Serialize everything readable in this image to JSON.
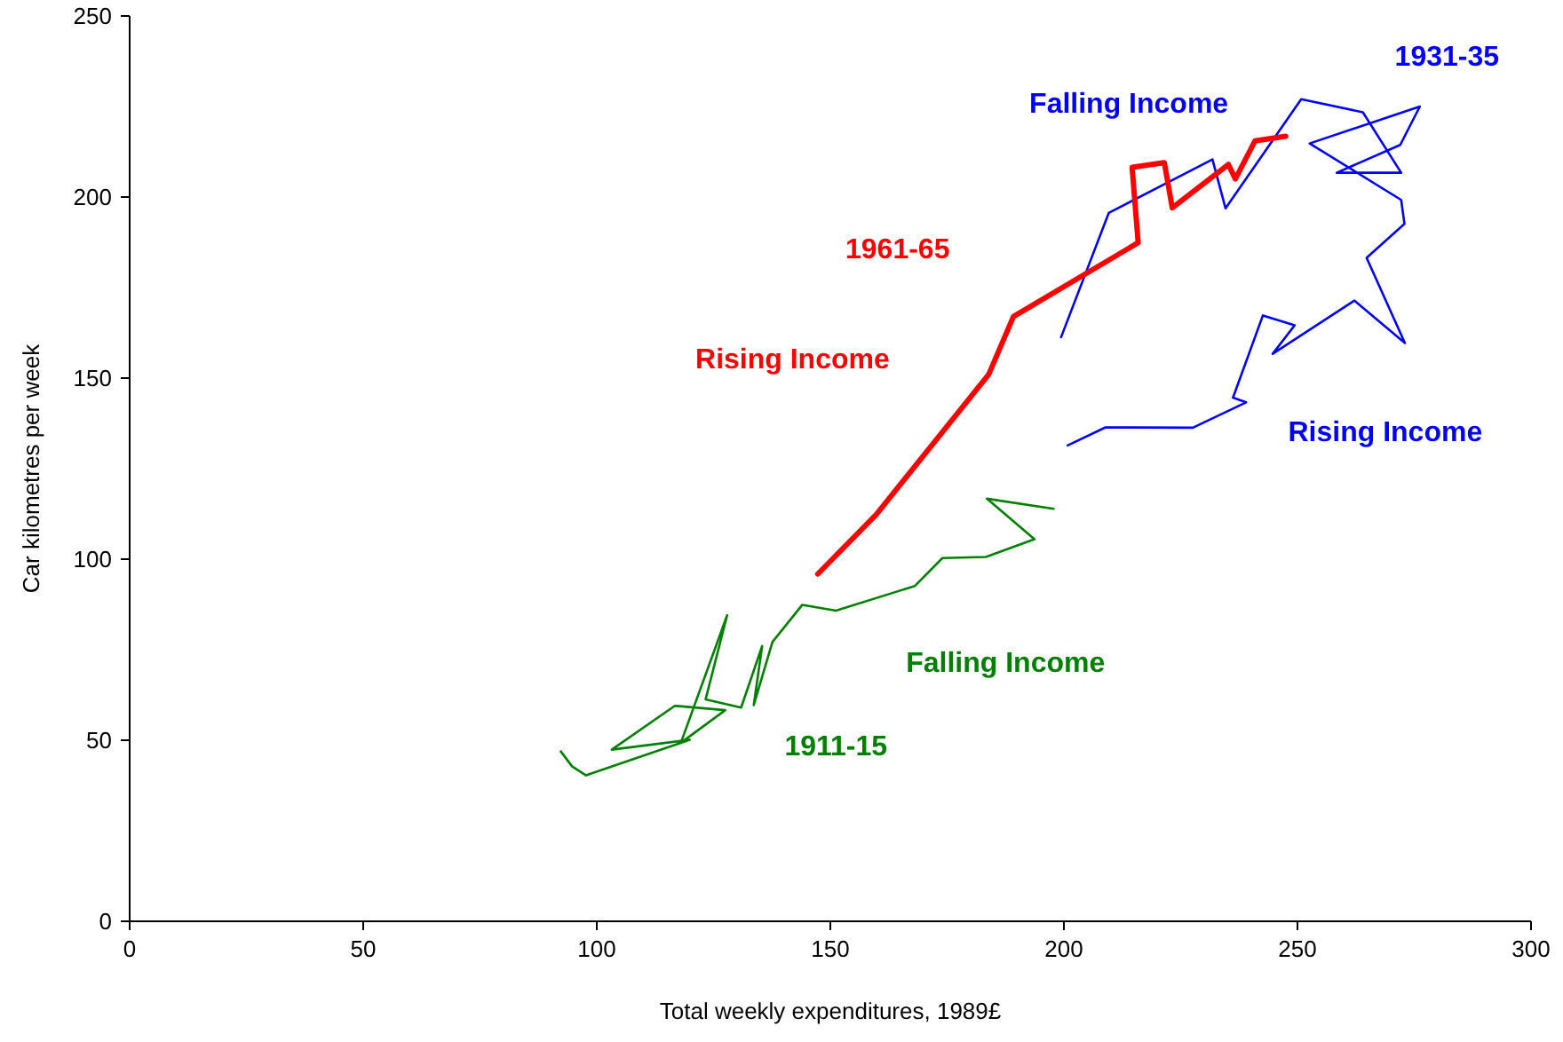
{
  "chart_data": {
    "type": "line",
    "xlabel": "Total weekly expenditures, 1989£",
    "ylabel": "Car kilometres per week",
    "xlim": [
      0,
      300
    ],
    "xticks": [
      0,
      50,
      100,
      150,
      200,
      250,
      300
    ],
    "ylim": [
      0,
      250
    ],
    "yticks": [
      0,
      50,
      100,
      150,
      200,
      250
    ],
    "grid": false,
    "marker": "none",
    "series": [
      {
        "name": "1911-15",
        "color": "#008000",
        "x": [
          92.3,
          94.7,
          97.7,
          119.9,
          103.2,
          116.7,
          127.5,
          118,
          127.9,
          123.3,
          130.9,
          135.4,
          133.6,
          137.6,
          144,
          151.2,
          168.1,
          174,
          183.3,
          193.7,
          183.5,
          197.8
        ],
        "values": [
          46.9,
          42.8,
          40.3,
          50.1,
          47.4,
          59.5,
          58.3,
          49.3,
          84.5,
          61.3,
          59,
          76,
          59.7,
          77.1,
          87.4,
          85.8,
          92.6,
          100.3,
          100.6,
          105.5,
          116.7,
          113.9
        ]
      },
      {
        "name": "1931-35",
        "color": "#0000ff",
        "x": [
          200.8,
          208.9,
          227.6,
          239,
          236.2,
          242.6,
          249.4,
          244.7,
          262.2,
          273,
          264.8,
          272.9,
          272.2,
          252.6,
          276.2,
          272,
          258.4,
          272.2,
          264,
          250.8,
          234.6,
          231.8,
          209.6,
          199.4
        ],
        "values": [
          131.4,
          136.4,
          136.3,
          143.3,
          144.6,
          167.3,
          164.6,
          156.7,
          171.4,
          159.7,
          183.2,
          192.6,
          199.2,
          214.8,
          225,
          214.4,
          206.7,
          206.7,
          223.4,
          227,
          196.9,
          210.4,
          195.6,
          161.3
        ]
      },
      {
        "name": "1961-65",
        "color": "#ff0000",
        "x": [
          147.3,
          159.8,
          183.9,
          189.2,
          215.9,
          214.6,
          221.5,
          223.2,
          235.2,
          236.7,
          240.9,
          247.5
        ],
        "values": [
          95.9,
          112.3,
          151,
          167,
          187.4,
          208.2,
          209.5,
          197,
          209,
          205,
          215.5,
          216.8
        ]
      }
    ],
    "annotations": [
      "Falling Income",
      "Falling Income",
      "Rising Income",
      "Rising Income"
    ]
  }
}
